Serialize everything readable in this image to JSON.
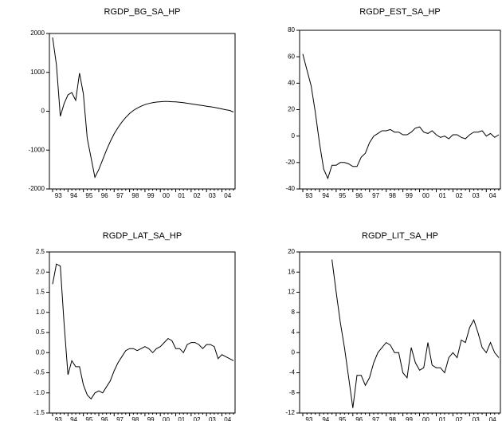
{
  "chart_data": [
    {
      "type": "line",
      "title": "RGDP_BG_SA_HP",
      "categories": [
        "93",
        null,
        null,
        null,
        "94",
        null,
        null,
        null,
        "95",
        null,
        null,
        null,
        "96",
        null,
        null,
        null,
        "97",
        null,
        null,
        null,
        "98",
        null,
        null,
        null,
        "99",
        null,
        null,
        null,
        "00",
        null,
        null,
        null,
        "01",
        null,
        null,
        null,
        "02",
        null,
        null,
        null,
        "03",
        null,
        null,
        null,
        "04",
        null,
        null,
        null
      ],
      "values": [
        1900,
        1200,
        -130,
        200,
        420,
        480,
        280,
        980,
        450,
        -700,
        -1200,
        -1700,
        -1500,
        -1250,
        -1000,
        -780,
        -580,
        -420,
        -280,
        -160,
        -60,
        20,
        80,
        130,
        170,
        200,
        220,
        235,
        245,
        250,
        250,
        245,
        240,
        230,
        220,
        205,
        190,
        175,
        160,
        145,
        130,
        115,
        100,
        80,
        60,
        40,
        20,
        -20
      ],
      "color": "#000000",
      "ylim": [
        -2000,
        2000
      ],
      "yticks": [
        -2000,
        -1000,
        0,
        1000,
        2000
      ]
    },
    {
      "type": "line",
      "title": "RGDP_EST_SA_HP",
      "categories": [
        "93",
        null,
        null,
        null,
        "94",
        null,
        null,
        null,
        "95",
        null,
        null,
        null,
        "96",
        null,
        null,
        null,
        "97",
        null,
        null,
        null,
        "98",
        null,
        null,
        null,
        "99",
        null,
        null,
        null,
        "00",
        null,
        null,
        null,
        "01",
        null,
        null,
        null,
        "02",
        null,
        null,
        null,
        "03",
        null,
        null,
        null,
        "04",
        null,
        null,
        null
      ],
      "values": [
        62,
        50,
        38,
        18,
        -5,
        -25,
        -32,
        -22,
        -22,
        -20,
        -20,
        -21,
        -23,
        -23,
        -16,
        -13,
        -5,
        0,
        2,
        4,
        4,
        5,
        3,
        3,
        1,
        1,
        3,
        6,
        7,
        3,
        2,
        4,
        1,
        -1,
        0,
        -2,
        1,
        1,
        -1,
        -2,
        1,
        3,
        3,
        4,
        0,
        2,
        -1,
        1
      ],
      "color": "#000000",
      "ylim": [
        -40,
        80
      ],
      "yticks": [
        -40,
        -20,
        0,
        20,
        40,
        60,
        80
      ]
    },
    {
      "type": "line",
      "title": "RGDP_LAT_SA_HP",
      "categories": [
        "93",
        null,
        null,
        null,
        "94",
        null,
        null,
        null,
        "95",
        null,
        null,
        null,
        "96",
        null,
        null,
        null,
        "97",
        null,
        null,
        null,
        "98",
        null,
        null,
        null,
        "99",
        null,
        null,
        null,
        "00",
        null,
        null,
        null,
        "01",
        null,
        null,
        null,
        "02",
        null,
        null,
        null,
        "03",
        null,
        null,
        null,
        "04",
        null,
        null,
        null
      ],
      "values": [
        1.7,
        2.2,
        2.15,
        0.7,
        -0.55,
        -0.2,
        -0.35,
        -0.35,
        -0.8,
        -1.05,
        -1.15,
        -1.0,
        -0.95,
        -1.0,
        -0.85,
        -0.7,
        -0.45,
        -0.25,
        -0.1,
        0.05,
        0.1,
        0.1,
        0.05,
        0.1,
        0.15,
        0.1,
        0.0,
        0.1,
        0.15,
        0.25,
        0.35,
        0.3,
        0.1,
        0.1,
        0.0,
        0.2,
        0.25,
        0.25,
        0.2,
        0.1,
        0.2,
        0.2,
        0.15,
        -0.15,
        -0.05,
        -0.1,
        -0.15,
        -0.2
      ],
      "color": "#000000",
      "ylim": [
        -1.5,
        2.5
      ],
      "yticks": [
        {
          "value": -1.5,
          "label": "-1.5"
        },
        {
          "value": -1,
          "label": "-1.0"
        },
        {
          "value": -0.5,
          "label": "-0.5"
        },
        {
          "value": 0,
          "label": "0.0"
        },
        {
          "value": 0.5,
          "label": "0.5"
        },
        {
          "value": 1,
          "label": "1.0"
        },
        {
          "value": 1.5,
          "label": "1.5"
        },
        {
          "value": 2,
          "label": "2.0"
        },
        {
          "value": 2.5,
          "label": "2.5"
        }
      ]
    },
    {
      "type": "line",
      "title": "RGDP_LIT_SA_HP",
      "categories": [
        "93",
        null,
        null,
        null,
        "94",
        null,
        null,
        null,
        "95",
        null,
        null,
        null,
        "96",
        null,
        null,
        null,
        "97",
        null,
        null,
        null,
        "98",
        null,
        null,
        null,
        "99",
        null,
        null,
        null,
        "00",
        null,
        null,
        null,
        "01",
        null,
        null,
        null,
        "02",
        null,
        null,
        null,
        "03",
        null,
        null,
        null,
        "04",
        null,
        null,
        null
      ],
      "values": [
        null,
        null,
        null,
        null,
        null,
        null,
        null,
        18.5,
        12,
        6,
        1,
        -5,
        -11,
        -4.5,
        -4.5,
        -6.5,
        -5,
        -2,
        0,
        1,
        2,
        1.5,
        0,
        0,
        -4,
        -5,
        1,
        -2,
        -3.5,
        -3,
        2,
        -2.5,
        -3,
        -3,
        -4,
        -1,
        0,
        -1,
        2.5,
        2,
        5,
        6.5,
        4,
        1,
        0,
        2,
        0,
        -1
      ],
      "color": "#000000",
      "ylim": [
        -12,
        20
      ],
      "yticks": [
        -12,
        -8,
        -4,
        0,
        4,
        8,
        12,
        16,
        20
      ]
    }
  ]
}
